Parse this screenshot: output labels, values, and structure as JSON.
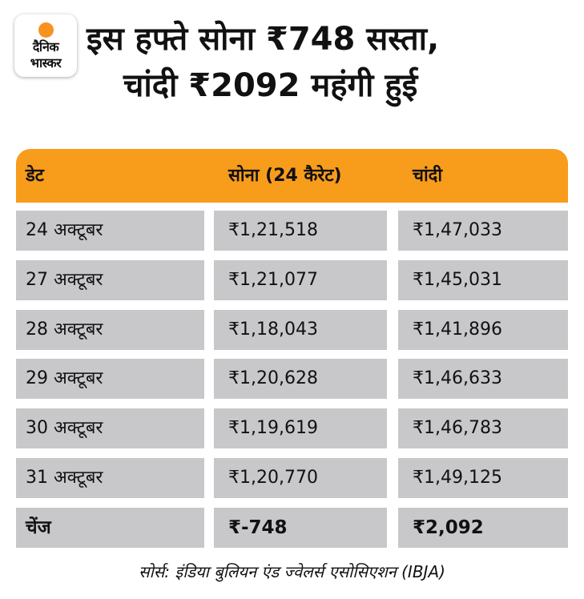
{
  "brand": {
    "logo_line1": "दैनिक",
    "logo_line2": "भास्कर",
    "accent_color": "#F89C1C"
  },
  "headline": {
    "line1": "इस हफ्ते सोना ₹748 सस्ता,",
    "line2": "चांदी ₹2092 महंगी हुई"
  },
  "table": {
    "headers": [
      "डेट",
      "सोना (24 कैरेट)",
      "चांदी"
    ],
    "rows": [
      [
        "24 अक्टूबर",
        "₹1,21,518",
        "₹1,47,033"
      ],
      [
        "27 अक्टूबर",
        "₹1,21,077",
        "₹1,45,031"
      ],
      [
        "28 अक्टूबर",
        "₹1,18,043",
        "₹1,41,896"
      ],
      [
        "29 अक्टूबर",
        "₹1,20,628",
        "₹1,46,633"
      ],
      [
        "30 अक्टूबर",
        "₹1,19,619",
        "₹1,46,783"
      ],
      [
        "31 अक्टूबर",
        "₹1,20,770",
        "₹1,49,125"
      ]
    ],
    "change_row": [
      "चेंज",
      "₹-748",
      "₹2,092"
    ]
  },
  "source": "सोर्स: इंडिया बुलियन एंड ज्वेलर्स एसोसिएशन (IBJA)"
}
